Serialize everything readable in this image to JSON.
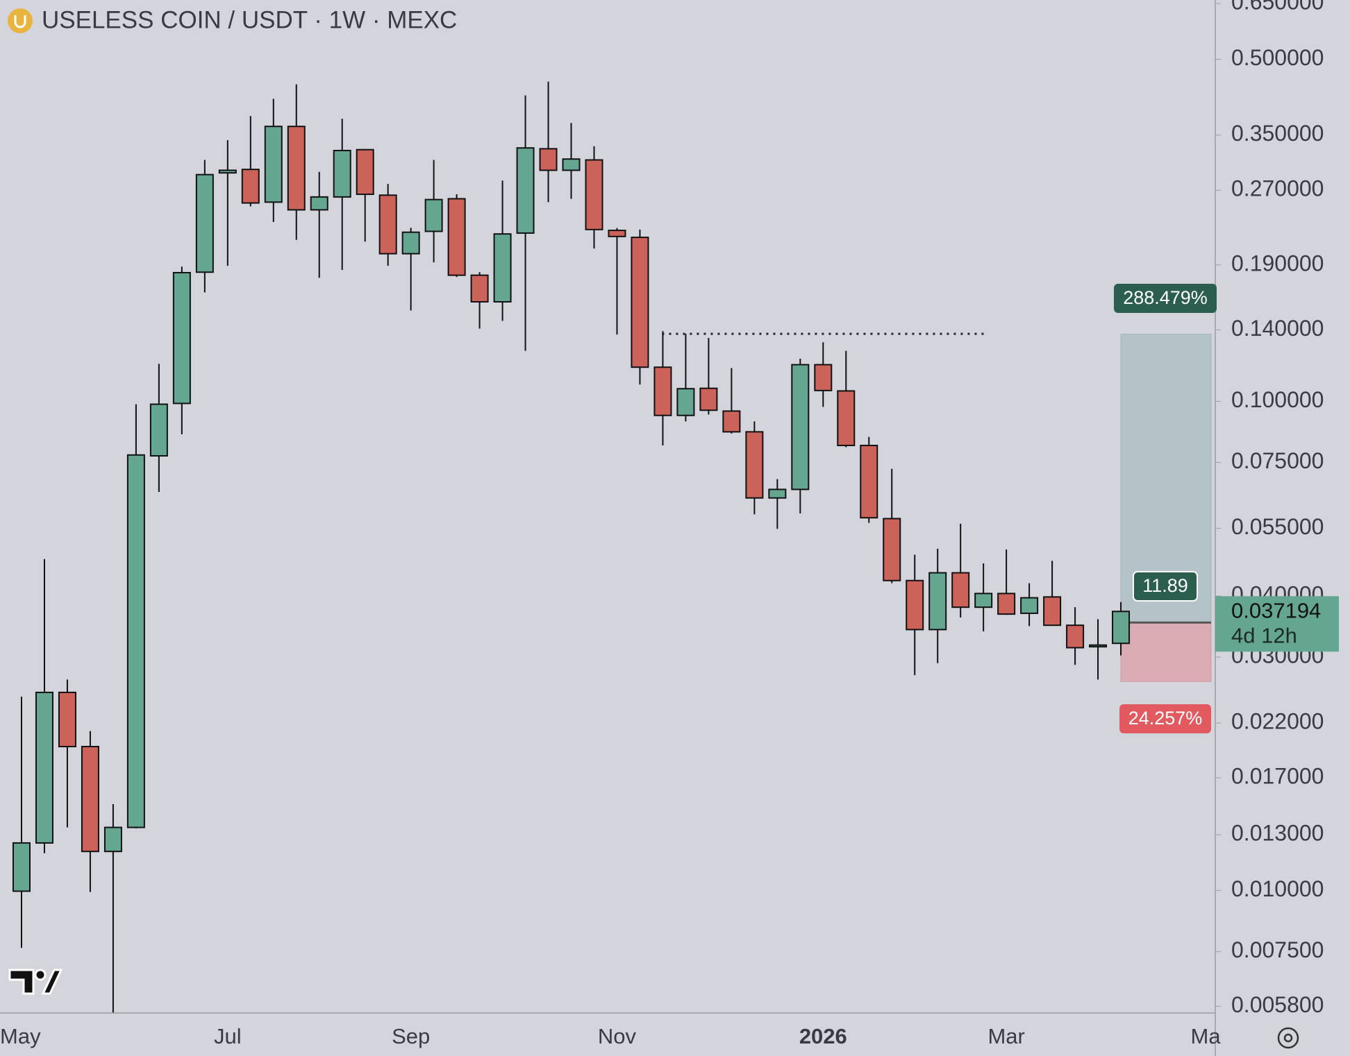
{
  "chart_data": {
    "type": "candlestick",
    "title": "USELESS COIN / USDT · 1W · MEXC",
    "categories": [
      null,
      null,
      null,
      null,
      null,
      null,
      null,
      null,
      null,
      null,
      null,
      null,
      null,
      null,
      null,
      null,
      null,
      null,
      null,
      null,
      null,
      null,
      null,
      null,
      null,
      null,
      null,
      null,
      null,
      null,
      null,
      null,
      null,
      null,
      null,
      null,
      null,
      null,
      null,
      null,
      null,
      null,
      null,
      null,
      null,
      null,
      null,
      null,
      null
    ],
    "open": [
      0.00997,
      0.01251,
      0.02541,
      0.01969,
      0.01202,
      0.01346,
      0.07735,
      0.099,
      0.1836,
      0.293,
      0.2978,
      0.2553,
      0.3646,
      0.2462,
      0.2616,
      0.3268,
      0.2638,
      0.2003,
      0.2225,
      0.2594,
      0.181,
      0.1597,
      0.2207,
      0.3282,
      0.2966,
      0.3114,
      0.2235,
      0.2163,
      0.1174,
      0.09357,
      0.1063,
      0.0955,
      0.08661,
      0.06345,
      0.06605,
      0.1188,
      0.105,
      0.08123,
      0.05757,
      0.04301,
      0.03415,
      0.04461,
      0.03794,
      0.04047,
      0.03687,
      0.03982,
      0.03485,
      0.0315,
      0.03201
    ],
    "high": [
      0.0249,
      0.04759,
      0.027,
      0.02118,
      0.01502,
      0.09863,
      0.1193,
      0.1885,
      0.3114,
      0.3418,
      0.3828,
      0.4151,
      0.4446,
      0.2943,
      0.3781,
      0.328,
      0.2781,
      0.2262,
      0.3114,
      0.2649,
      0.1836,
      0.2826,
      0.4219,
      0.4501,
      0.3706,
      0.3322,
      0.226,
      0.2244,
      0.1391,
      0.1374,
      0.1347,
      0.1169,
      0.09096,
      0.06934,
      0.1222,
      0.132,
      0.1268,
      0.08455,
      0.07279,
      0.04857,
      0.04997,
      0.05619,
      0.04664,
      0.04977,
      0.04249,
      0.04721,
      0.03794,
      0.03585,
      0.03887
    ],
    "low": [
      0.007637,
      0.01192,
      0.01346,
      0.00993,
      0.0055,
      0.0134,
      0.06527,
      0.08558,
      0.1669,
      0.1892,
      0.2503,
      0.2326,
      0.2137,
      0.1788,
      0.1855,
      0.212,
      0.1892,
      0.1533,
      0.1923,
      0.1795,
      0.1408,
      0.146,
      0.1268,
      0.2553,
      0.2594,
      0.2052,
      0.1369,
      0.1082,
      0.08123,
      0.09096,
      0.09396,
      0.08592,
      0.05875,
      0.05485,
      0.05898,
      0.09743,
      0.08057,
      0.05642,
      0.04249,
      0.02755,
      0.02916,
      0.03614,
      0.03388,
      0.03659,
      0.03471,
      0.0348,
      0.02892,
      0.027,
      0.03024
    ],
    "close": [
      0.01251,
      0.02541,
      0.01969,
      0.01202,
      0.01346,
      0.07767,
      0.09863,
      0.1832,
      0.2906,
      0.2966,
      0.2543,
      0.3646,
      0.2462,
      0.2616,
      0.3255,
      0.2649,
      0.2003,
      0.2216,
      0.2584,
      0.181,
      0.1597,
      0.2198,
      0.3295,
      0.2966,
      0.3127,
      0.2244,
      0.2172,
      0.1174,
      0.09357,
      0.1061,
      0.09587,
      0.08661,
      0.06345,
      0.06605,
      0.1188,
      0.1052,
      0.08123,
      0.0578,
      0.04301,
      0.03415,
      0.04461,
      0.03794,
      0.04047,
      0.03673,
      0.03966,
      0.03485,
      0.03136,
      0.03175,
      0.037194
    ],
    "up_color": "#65a690",
    "down_color": "#cc635b",
    "log_scale": true,
    "ylim": [
      0.00562,
      0.661
    ],
    "yticks": [
      {
        "value": 0.65,
        "label": "0.650000"
      },
      {
        "value": 0.5,
        "label": "0.500000"
      },
      {
        "value": 0.35,
        "label": "0.350000"
      },
      {
        "value": 0.27,
        "label": "0.270000"
      },
      {
        "value": 0.19,
        "label": "0.190000"
      },
      {
        "value": 0.14,
        "label": "0.140000"
      },
      {
        "value": 0.1,
        "label": "0.100000"
      },
      {
        "value": 0.075,
        "label": "0.075000"
      },
      {
        "value": 0.055,
        "label": "0.055000"
      },
      {
        "value": 0.04,
        "label": "0.040000"
      },
      {
        "value": 0.03,
        "label": "0.030000"
      },
      {
        "value": 0.022,
        "label": "0.022000"
      },
      {
        "value": 0.017,
        "label": "0.017000"
      },
      {
        "value": 0.013,
        "label": "0.013000"
      },
      {
        "value": 0.01,
        "label": "0.010000"
      },
      {
        "value": 0.0075,
        "label": "0.007500"
      },
      {
        "value": 0.0058,
        "label": "0.005800"
      }
    ],
    "xticks": [
      {
        "value": 0,
        "label": "May"
      },
      {
        "value": 9,
        "label": "Jul"
      },
      {
        "value": 17,
        "label": "Sep"
      },
      {
        "value": 26,
        "label": "Nov"
      },
      {
        "value": 35,
        "label": "2026"
      },
      {
        "value": 43,
        "label": "Mar"
      },
      {
        "value": 51.7,
        "label": "Ma"
      }
    ],
    "level_line": {
      "value": 0.1374
    },
    "position": {
      "entry": 0.0353,
      "target": 0.13713,
      "stop": 0.026737,
      "target_label": "288.479%",
      "ratio_label": "11.89",
      "stop_label": "24.257%"
    },
    "countdown": "4d 12h"
  }
}
